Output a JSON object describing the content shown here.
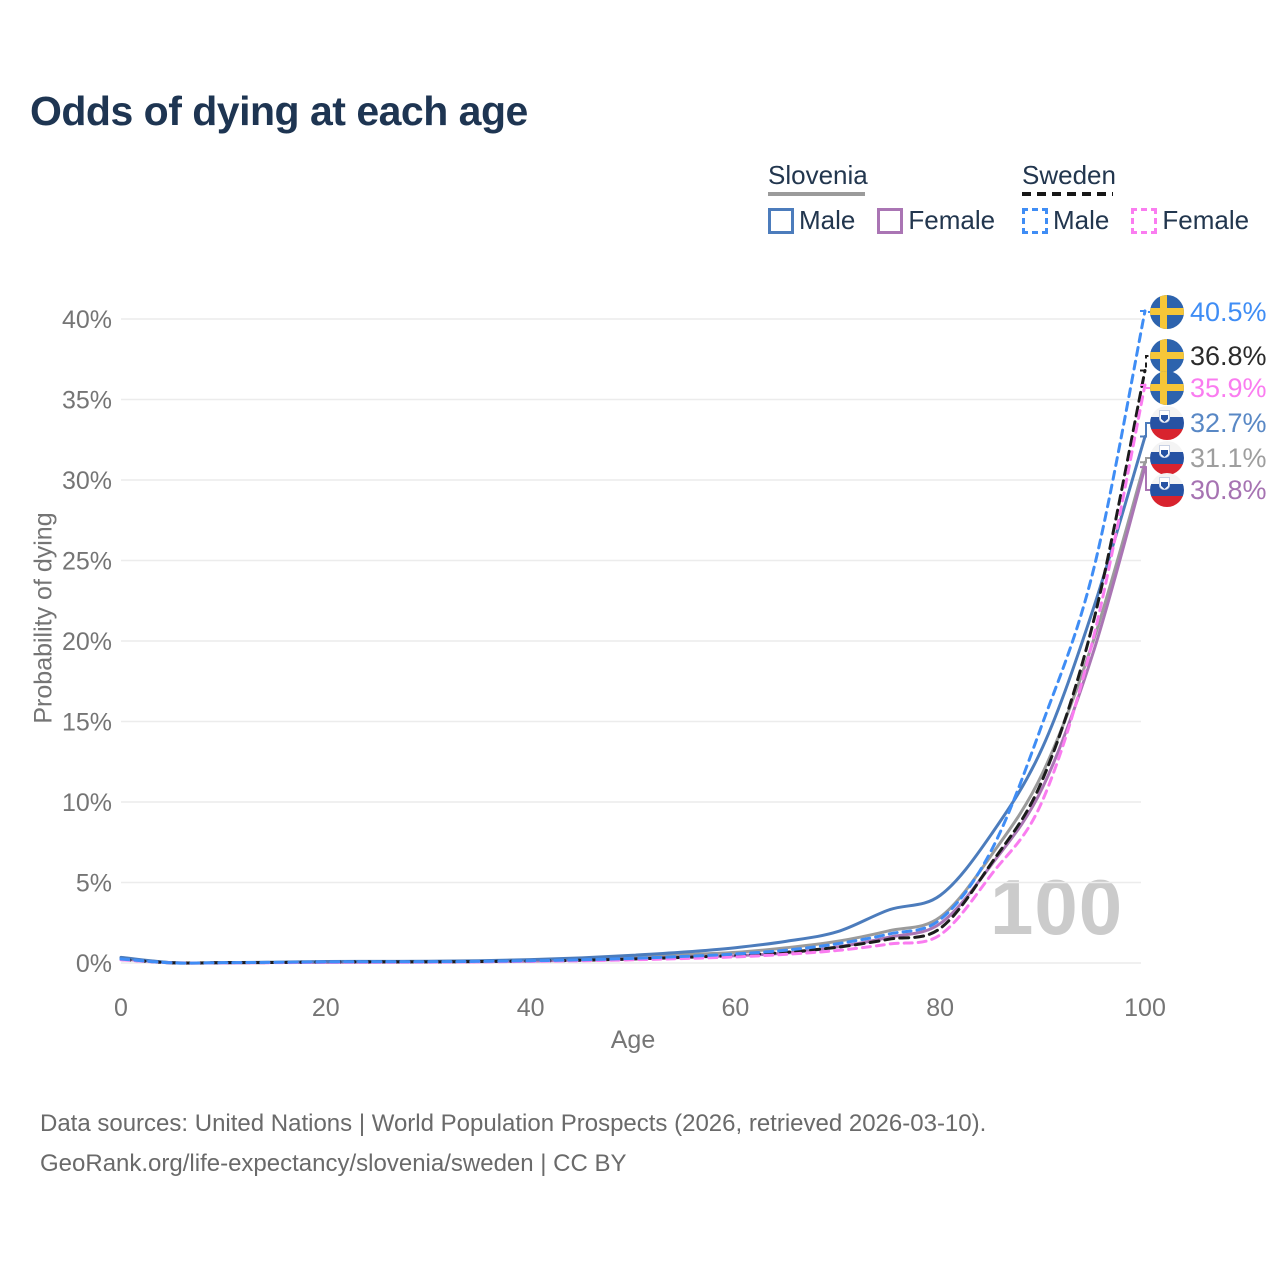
{
  "title": "Odds of dying at each age",
  "legend": {
    "groups": [
      {
        "name": "Slovenia",
        "line_style": "solid",
        "line_color": "#9b9b9b",
        "items": [
          {
            "label": "Male",
            "color": "#4c7cbc",
            "style": "solid"
          },
          {
            "label": "Female",
            "color": "#aa75b4",
            "style": "solid"
          }
        ]
      },
      {
        "name": "Sweden",
        "line_style": "dashed",
        "line_color": "#161616",
        "items": [
          {
            "label": "Male",
            "color": "#3f8df5",
            "style": "dashed"
          },
          {
            "label": "Female",
            "color": "#fa7cf0",
            "style": "dashed"
          }
        ]
      }
    ]
  },
  "chart_data": {
    "type": "line",
    "title": "Odds of dying at each age",
    "xlabel": "Age",
    "ylabel": "Probability of dying",
    "xlim": [
      0,
      100
    ],
    "ylim": [
      0,
      40
    ],
    "grid": true,
    "legend_position": "top-right",
    "frame_label": "100",
    "xticks": [
      0,
      20,
      40,
      60,
      80,
      100
    ],
    "yticks": [
      0,
      5,
      10,
      15,
      20,
      25,
      30,
      35,
      40
    ],
    "ytick_suffix": "%",
    "x": [
      0,
      5,
      10,
      15,
      20,
      25,
      30,
      35,
      40,
      45,
      50,
      55,
      60,
      65,
      70,
      75,
      80,
      85,
      90,
      95,
      100
    ],
    "series": [
      {
        "id": "slovenia-both",
        "name": "Slovenia (both sexes)",
        "color": "#9b9b9b",
        "dash": null,
        "values": [
          0.3,
          0.02,
          0.02,
          0.04,
          0.06,
          0.08,
          0.09,
          0.11,
          0.16,
          0.25,
          0.37,
          0.52,
          0.66,
          0.95,
          1.35,
          2.0,
          2.85,
          6.7,
          11.8,
          20.1,
          31.1
        ]
      },
      {
        "id": "slovenia-female",
        "name": "Slovenia Female",
        "color": "#aa75b4",
        "dash": null,
        "values": [
          0.25,
          0.01,
          0.01,
          0.03,
          0.04,
          0.05,
          0.06,
          0.08,
          0.12,
          0.18,
          0.26,
          0.37,
          0.45,
          0.62,
          1.0,
          1.6,
          2.45,
          6.1,
          10.9,
          19.4,
          30.8
        ]
      },
      {
        "id": "slovenia-male",
        "name": "Slovenia Male",
        "color": "#4c7cbc",
        "dash": null,
        "values": [
          0.35,
          0.02,
          0.02,
          0.05,
          0.09,
          0.1,
          0.11,
          0.14,
          0.21,
          0.32,
          0.48,
          0.68,
          0.95,
          1.35,
          1.95,
          3.3,
          4.2,
          8.0,
          13.4,
          22.1,
          32.7
        ]
      },
      {
        "id": "sweden-both",
        "name": "Sweden (both sexes)",
        "color": "#1c1c1c",
        "dash": "9 6",
        "values": [
          0.22,
          0.01,
          0.02,
          0.03,
          0.06,
          0.07,
          0.07,
          0.09,
          0.12,
          0.17,
          0.25,
          0.35,
          0.47,
          0.67,
          0.98,
          1.48,
          2.15,
          6.2,
          11.4,
          21.3,
          36.8
        ]
      },
      {
        "id": "sweden-female",
        "name": "Sweden Female",
        "color": "#fa7cf0",
        "dash": "8 6",
        "values": [
          0.2,
          0.01,
          0.01,
          0.02,
          0.04,
          0.05,
          0.05,
          0.07,
          0.1,
          0.14,
          0.2,
          0.28,
          0.38,
          0.54,
          0.78,
          1.18,
          1.75,
          5.5,
          10.1,
          20.3,
          35.9
        ]
      },
      {
        "id": "sweden-male",
        "name": "Sweden Male",
        "color": "#3f8df5",
        "dash": "8 6",
        "values": [
          0.25,
          0.01,
          0.02,
          0.04,
          0.07,
          0.08,
          0.08,
          0.1,
          0.14,
          0.2,
          0.29,
          0.41,
          0.56,
          0.8,
          1.2,
          1.8,
          2.7,
          7.0,
          14.9,
          24.5,
          40.5
        ]
      }
    ]
  },
  "end_labels": [
    {
      "text": "40.5%",
      "value": 40.5,
      "flag": "se",
      "series": "sweden-male",
      "color": "#3f8df5",
      "line_color": "#3f8df5",
      "dashed": true
    },
    {
      "text": "36.8%",
      "value": 36.8,
      "flag": "se",
      "series": "sweden-both",
      "color": "#2b2b2b",
      "line_color": "#1c1c1c",
      "dashed": true
    },
    {
      "text": "35.9%",
      "value": 35.9,
      "flag": "se",
      "series": "sweden-female",
      "color": "#fa7cf0",
      "line_color": "#fa7cf0",
      "dashed": true
    },
    {
      "text": "32.7%",
      "value": 32.7,
      "flag": "si",
      "series": "slovenia-male",
      "color": "#5988c5",
      "line_color": "#4c7cbc",
      "dashed": false
    },
    {
      "text": "31.1%",
      "value": 31.1,
      "flag": "si",
      "series": "slovenia-both",
      "color": "#9e9e9e",
      "line_color": "#9b9b9b",
      "dashed": false
    },
    {
      "text": "30.8%",
      "value": 30.8,
      "flag": "si",
      "series": "slovenia-female",
      "color": "#a673b2",
      "line_color": "#aa75b4",
      "dashed": false
    }
  ],
  "footer": {
    "line1": "Data sources: United Nations | World Population Prospects (2026, retrieved 2026-03-10).",
    "line2": "GeoRank.org/life-expectancy/slovenia/sweden | CC BY"
  }
}
